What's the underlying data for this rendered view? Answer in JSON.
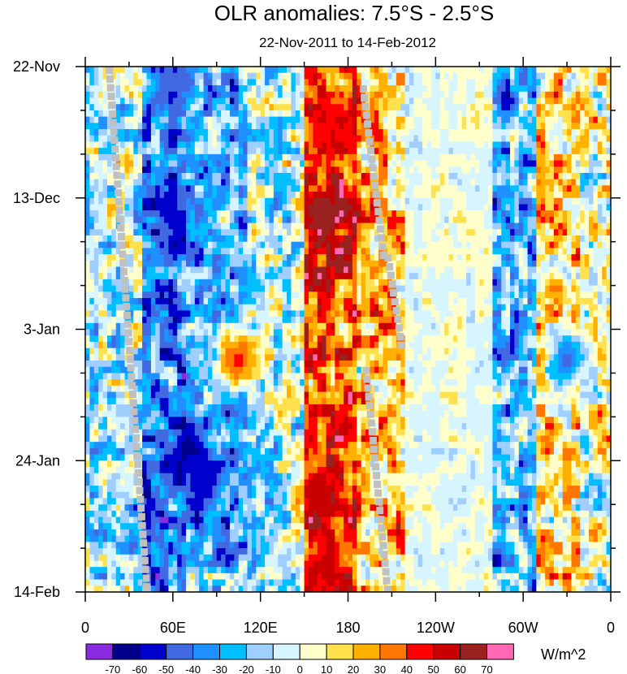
{
  "chart_data": {
    "type": "heatmap",
    "title": "OLR anomalies: 7.5°S - 2.5°S",
    "subtitle": "22-Nov-2011 to 14-Feb-2012",
    "xlabel": "",
    "ylabel": "",
    "x_ticks": [
      "0",
      "60E",
      "120E",
      "180",
      "120W",
      "60W",
      "0"
    ],
    "y_ticks": [
      "22-Nov",
      "13-Dec",
      "3-Jan",
      "24-Jan",
      "14-Feb"
    ],
    "x_range": [
      "0",
      "0"
    ],
    "y_range": [
      "22-Nov-2011",
      "14-Feb-2012"
    ],
    "colorbar": {
      "units": "W/m^2",
      "levels": [
        -70,
        -60,
        -50,
        -40,
        -30,
        -20,
        -10,
        0,
        10,
        20,
        30,
        40,
        50,
        60,
        70
      ],
      "colors": [
        "#8a2be2",
        "#00008b",
        "#0000cd",
        "#4169e1",
        "#1e90ff",
        "#00bfff",
        "#a0cfff",
        "#d6f5ff",
        "#ffffcc",
        "#ffe14d",
        "#ffb000",
        "#ff7700",
        "#ff0000",
        "#c80000",
        "#9b2020",
        "#ff69b4"
      ],
      "missing_color": "#c0c0c0"
    },
    "bands": [
      {
        "lon_start": 0,
        "lon_end": 40,
        "mean_anomaly": -10
      },
      {
        "lon_start": 40,
        "lon_end": 70,
        "mean_anomaly": -35
      },
      {
        "lon_start": 70,
        "lon_end": 110,
        "mean_anomaly": -25
      },
      {
        "lon_start": 110,
        "lon_end": 150,
        "mean_anomaly": -10
      },
      {
        "lon_start": 150,
        "lon_end": 185,
        "mean_anomaly": 40
      },
      {
        "lon_start": 185,
        "lon_end": 220,
        "mean_anomaly": 20
      },
      {
        "lon_start": 220,
        "lon_end": 280,
        "mean_anomaly": 0
      },
      {
        "lon_start": 280,
        "lon_end": 310,
        "mean_anomaly": -25
      },
      {
        "lon_start": 310,
        "lon_end": 340,
        "mean_anomaly": 15
      },
      {
        "lon_start": 340,
        "lon_end": 360,
        "mean_anomaly": 5
      }
    ],
    "features": [
      {
        "name": "strong positive",
        "lon": 163,
        "date": "16-Dec",
        "value": 70
      },
      {
        "name": "positive",
        "lon": 160,
        "date": "29-Jan",
        "value": 55
      },
      {
        "name": "positive",
        "lon": 165,
        "date": "10-Feb",
        "value": 55
      },
      {
        "name": "positive",
        "lon": 165,
        "date": "1-Dec",
        "value": 50
      },
      {
        "name": "negative",
        "lon": 70,
        "date": "22-Jan",
        "value": -65
      },
      {
        "name": "negative",
        "lon": 80,
        "date": "28-Jan",
        "value": -60
      },
      {
        "name": "negative",
        "lon": 60,
        "date": "16-Dec",
        "value": -55
      },
      {
        "name": "negative",
        "lon": 60,
        "date": "25-Nov",
        "value": -50
      },
      {
        "name": "negative",
        "lon": 330,
        "date": "8-Jan",
        "value": -45
      },
      {
        "name": "positive",
        "lon": 105,
        "date": "8-Jan",
        "value": 45
      }
    ]
  }
}
